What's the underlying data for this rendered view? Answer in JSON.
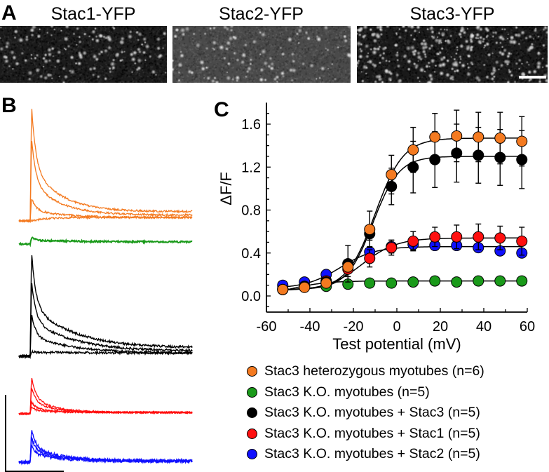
{
  "panels": {
    "a": {
      "letter": "A",
      "images": [
        {
          "title": "Stac1-YFP",
          "background": "#1c1c1c",
          "density": "medium"
        },
        {
          "title": "Stac2-YFP",
          "background": "#4a4a4a",
          "density": "low"
        },
        {
          "title": "Stac3-YFP",
          "background": "#1a1a1a",
          "density": "high"
        }
      ],
      "scale_bar": true
    },
    "b": {
      "letter": "B",
      "traces": [
        {
          "group": "Stac3 heterozygous",
          "color": "#f47a20",
          "peaks": [
            1.0,
            0.72,
            0.2,
            0.0
          ]
        },
        {
          "group": "Stac3 K.O.",
          "color": "#1a9a1a",
          "peaks": [
            0.06
          ]
        },
        {
          "group": "Stac3 K.O. + Stac3",
          "color": "#000000",
          "peaks": [
            1.0,
            0.72,
            0.4,
            0.05
          ]
        },
        {
          "group": "Stac3 K.O. + Stac1",
          "color": "#ff1010",
          "peaks": [
            0.55,
            0.4,
            0.18,
            0.1
          ]
        },
        {
          "group": "Stac3 K.O. + Stac2",
          "color": "#1010ff",
          "peaks": [
            0.6,
            0.45,
            0.3
          ]
        }
      ]
    },
    "c": {
      "letter": "C"
    }
  },
  "chart_data": {
    "type": "scatter",
    "title": "",
    "xlabel": "Test potential (mV)",
    "ylabel": "ΔF/F",
    "xlim": [
      -60,
      60
    ],
    "ylim": [
      -0.15,
      1.8
    ],
    "xticks": [
      -60,
      -40,
      -20,
      0,
      20,
      40,
      60
    ],
    "xtick_labels": [
      "-60",
      "-40",
      "-20",
      "0",
      "20",
      "40",
      "60"
    ],
    "yticks": [
      0.0,
      0.4,
      0.8,
      1.2,
      1.6
    ],
    "ytick_labels": [
      "0.0",
      "0.4",
      "0.8",
      "1.2",
      "1.6"
    ],
    "grid": false,
    "legend_position": "bottom",
    "x": [
      -52.5,
      -42.5,
      -32.5,
      -22.5,
      -12.5,
      -2.5,
      7.5,
      17.5,
      27.5,
      37.5,
      47.5,
      57.5
    ],
    "series": [
      {
        "name": "Stac3 heterozygous myotubes (n=6)",
        "color": "#f47a20",
        "values": [
          0.06,
          0.08,
          0.12,
          0.27,
          0.62,
          1.13,
          1.36,
          1.48,
          1.49,
          1.48,
          1.47,
          1.44
        ],
        "errors": [
          0.02,
          0.02,
          0.03,
          0.04,
          0.17,
          0.18,
          0.21,
          0.22,
          0.24,
          0.23,
          0.24,
          0.23
        ],
        "fit": {
          "max": 1.47,
          "vhalf": -10,
          "k": 6.5,
          "base": 0.06
        }
      },
      {
        "name": "Stac3 K.O. myotubes (n=5)",
        "color": "#1a9a1a",
        "values": [
          0.07,
          0.09,
          0.09,
          0.11,
          0.12,
          0.12,
          0.13,
          0.14,
          0.13,
          0.14,
          0.14,
          0.14
        ],
        "errors": [
          0.01,
          0.01,
          0.01,
          0.01,
          0.01,
          0.01,
          0.01,
          0.01,
          0.01,
          0.01,
          0.01,
          0.01
        ],
        "fit": {
          "max": 0.14,
          "vhalf": -48,
          "k": 8,
          "base": 0.0
        }
      },
      {
        "name": "Stac3 K.O. myotubes + Stac3 (n=5)",
        "color": "#000000",
        "values": [
          0.06,
          0.09,
          0.13,
          0.3,
          0.58,
          1.02,
          1.2,
          1.27,
          1.33,
          1.31,
          1.29,
          1.27
        ],
        "errors": [
          0.02,
          0.02,
          0.03,
          0.04,
          0.06,
          0.17,
          0.24,
          0.26,
          0.27,
          0.26,
          0.26,
          0.27
        ],
        "fit": {
          "max": 1.3,
          "vhalf": -11,
          "k": 6,
          "base": 0.06
        }
      },
      {
        "name": "Stac3 K.O. myotubes + Stac1 (n=5)",
        "color": "#ff1010",
        "values": [
          0.06,
          0.09,
          0.14,
          0.25,
          0.35,
          0.45,
          0.51,
          0.55,
          0.55,
          0.55,
          0.54,
          0.51
        ],
        "errors": [
          0.02,
          0.02,
          0.04,
          0.07,
          0.08,
          0.07,
          0.09,
          0.09,
          0.11,
          0.12,
          0.11,
          0.13
        ],
        "fit": {
          "max": 0.54,
          "vhalf": -16,
          "k": 8,
          "base": 0.05
        }
      },
      {
        "name": "Stac3 K.O. myotubes + Stac2 (n=5)",
        "color": "#1010ff",
        "values": [
          0.1,
          0.13,
          0.2,
          0.3,
          0.41,
          0.46,
          0.48,
          0.47,
          0.47,
          0.45,
          0.42,
          0.4
        ],
        "errors": [
          0.02,
          0.02,
          0.03,
          0.17,
          0.05,
          0.06,
          0.05,
          0.04,
          0.04,
          0.04,
          0.04,
          0.04
        ],
        "fit": {
          "max": 0.46,
          "vhalf": -26,
          "k": 8,
          "base": 0.07
        }
      }
    ]
  },
  "legend": [
    {
      "label": "Stac3 heterozygous myotubes (n=6)",
      "color": "#f47a20"
    },
    {
      "label": "Stac3 K.O. myotubes (n=5)",
      "color": "#1a9a1a"
    },
    {
      "label": "Stac3 K.O. myotubes + Stac3 (n=5)",
      "color": "#000000"
    },
    {
      "label": "Stac3 K.O. myotubes + Stac1 (n=5)",
      "color": "#ff1010"
    },
    {
      "label": "Stac3 K.O. myotubes + Stac2 (n=5)",
      "color": "#1010ff"
    }
  ]
}
